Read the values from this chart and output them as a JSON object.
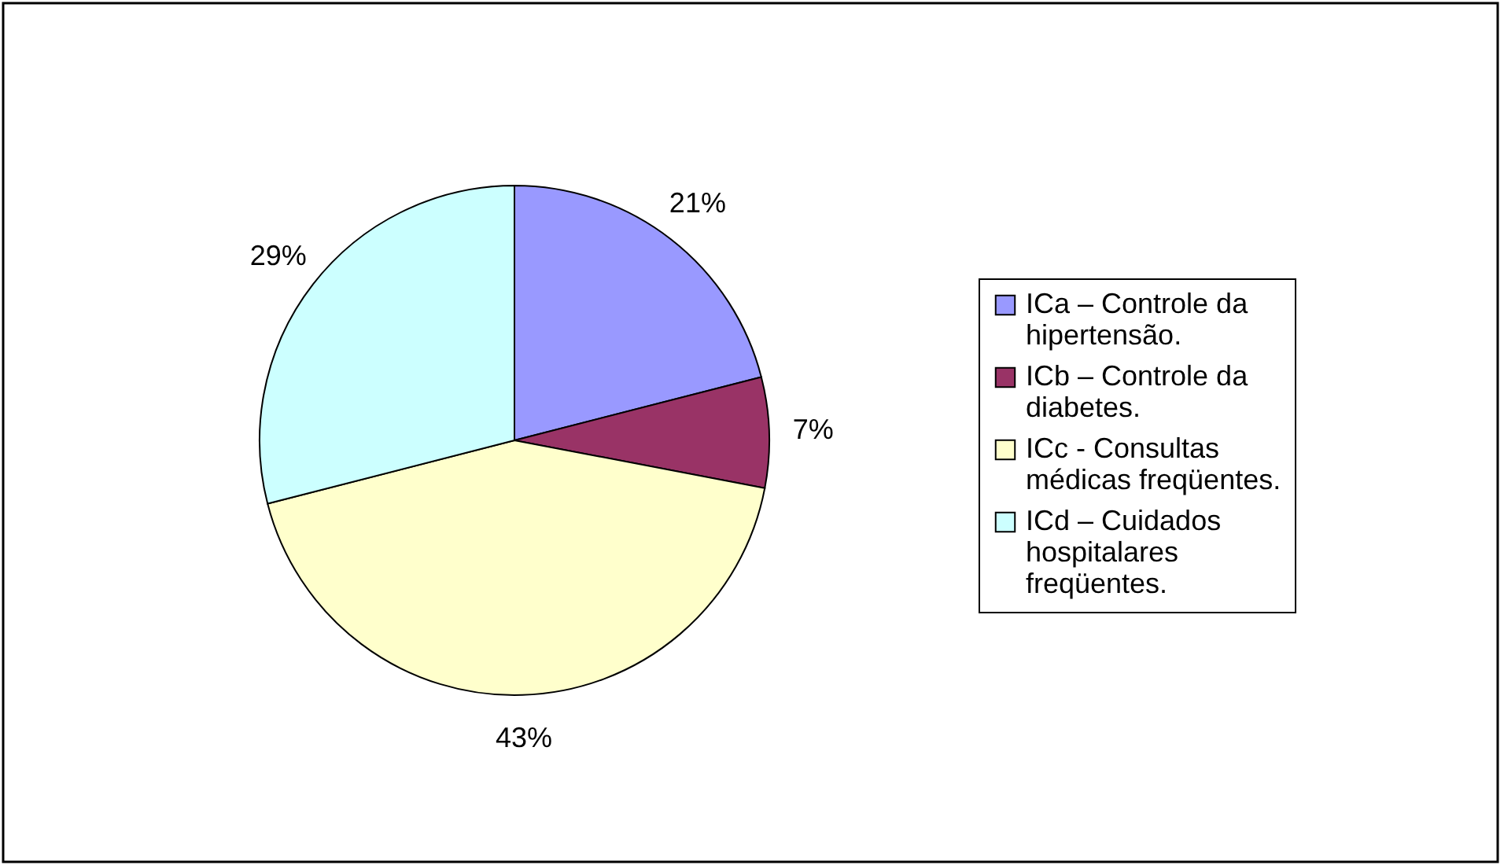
{
  "chart_data": {
    "type": "pie",
    "categories": [
      "ICa – Controle da hipertensão.",
      "ICb – Controle da diabetes.",
      "ICc -  Consultas médicas freqüentes.",
      "ICd – Cuidados hospitalares freqüentes."
    ],
    "values": [
      21,
      7,
      43,
      29
    ],
    "colors": [
      "#9999ff",
      "#993366",
      "#ffffcc",
      "#ccffff"
    ],
    "value_labels": [
      "21%",
      "7%",
      "43%",
      "29%"
    ],
    "legend": "right"
  }
}
